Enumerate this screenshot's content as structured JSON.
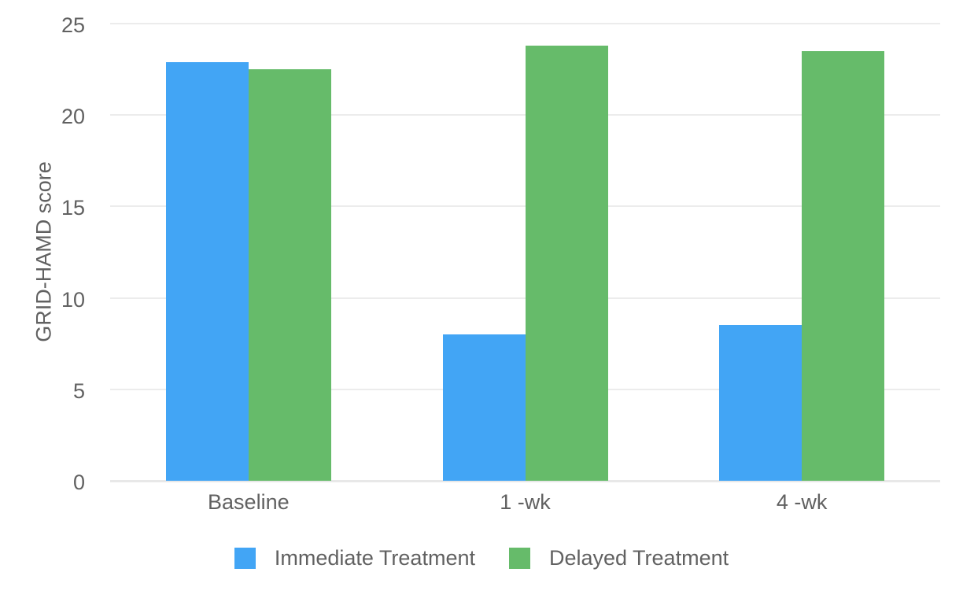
{
  "chart_data": {
    "type": "bar",
    "title": "",
    "categories": [
      "Baseline",
      "1 -wk",
      "4 -wk"
    ],
    "series": [
      {
        "name": "Immediate Treatment",
        "color": "#42A5F5",
        "values": [
          22.9,
          8.0,
          8.5
        ]
      },
      {
        "name": "Delayed Treatment",
        "color": "#66BB6A",
        "values": [
          22.5,
          23.8,
          23.5
        ]
      }
    ],
    "xlabel": "",
    "ylabel": "GRID-HAMD score",
    "ylim": [
      0,
      25
    ],
    "yticks": [
      0,
      5,
      10,
      15,
      20,
      25
    ],
    "grid": "horizontal-only",
    "legend_position": "bottom-center"
  },
  "colors": {
    "background": "#FFFFFF",
    "gridline": "#ECECEC",
    "zero_line": "#E8E8E8",
    "text": "#616161",
    "series_blue": "#42A5F5",
    "series_green": "#66BB6A"
  }
}
